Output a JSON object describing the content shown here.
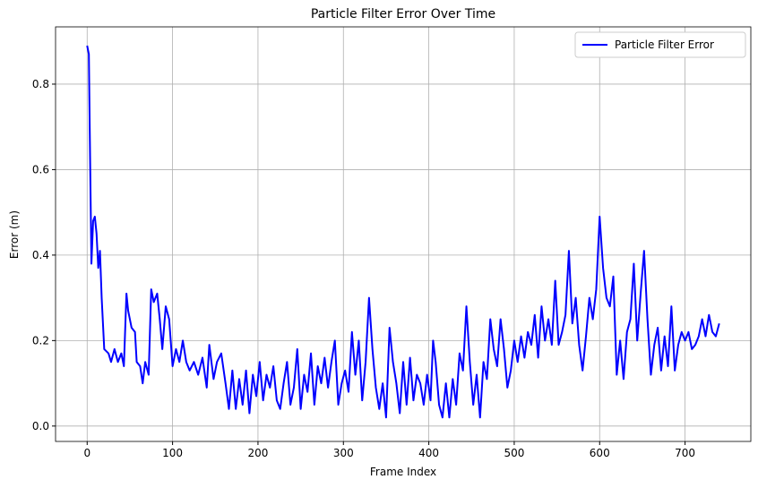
{
  "chart_data": {
    "type": "line",
    "title": "Particle Filter Error Over Time",
    "x_label": "Frame Index",
    "y_label": "Error (m)",
    "x": [
      0,
      2,
      3,
      5,
      7,
      9,
      11,
      13,
      15,
      17,
      20,
      25,
      28,
      32,
      36,
      40,
      43,
      46,
      48,
      52,
      56,
      58,
      62,
      65,
      68,
      72,
      75,
      78,
      82,
      85,
      88,
      92,
      96,
      100,
      104,
      108,
      112,
      116,
      120,
      125,
      130,
      135,
      140,
      143,
      148,
      152,
      157,
      162,
      166,
      170,
      174,
      178,
      182,
      186,
      190,
      194,
      198,
      202,
      206,
      210,
      214,
      218,
      222,
      226,
      230,
      234,
      238,
      242,
      246,
      250,
      254,
      258,
      262,
      266,
      270,
      274,
      278,
      282,
      286,
      290,
      294,
      298,
      302,
      306,
      310,
      314,
      318,
      322,
      326,
      330,
      334,
      338,
      342,
      346,
      350,
      354,
      358,
      362,
      366,
      370,
      374,
      378,
      382,
      386,
      390,
      394,
      398,
      402,
      405,
      408,
      412,
      416,
      420,
      424,
      428,
      432,
      436,
      440,
      444,
      448,
      452,
      456,
      460,
      464,
      468,
      472,
      476,
      480,
      484,
      488,
      492,
      496,
      500,
      504,
      508,
      512,
      516,
      520,
      524,
      528,
      532,
      536,
      540,
      544,
      548,
      552,
      556,
      560,
      564,
      568,
      572,
      576,
      580,
      584,
      588,
      592,
      596,
      600,
      604,
      608,
      612,
      616,
      620,
      624,
      628,
      632,
      636,
      640,
      644,
      648,
      652,
      656,
      660,
      664,
      668,
      672,
      676,
      680,
      684,
      688,
      692,
      696,
      700,
      704,
      708,
      712,
      716,
      720,
      724,
      728,
      732,
      736,
      740
    ],
    "series": [
      {
        "name": "Particle Filter Error",
        "color": "#0000ff",
        "values": [
          0.89,
          0.87,
          0.7,
          0.38,
          0.48,
          0.49,
          0.45,
          0.37,
          0.41,
          0.3,
          0.18,
          0.17,
          0.15,
          0.18,
          0.15,
          0.17,
          0.14,
          0.31,
          0.27,
          0.23,
          0.22,
          0.15,
          0.14,
          0.1,
          0.15,
          0.12,
          0.32,
          0.29,
          0.31,
          0.25,
          0.18,
          0.28,
          0.25,
          0.14,
          0.18,
          0.15,
          0.2,
          0.15,
          0.13,
          0.15,
          0.12,
          0.16,
          0.09,
          0.19,
          0.11,
          0.15,
          0.17,
          0.1,
          0.04,
          0.13,
          0.04,
          0.11,
          0.05,
          0.13,
          0.03,
          0.12,
          0.07,
          0.15,
          0.06,
          0.12,
          0.09,
          0.14,
          0.06,
          0.04,
          0.1,
          0.15,
          0.05,
          0.09,
          0.18,
          0.04,
          0.12,
          0.08,
          0.17,
          0.05,
          0.14,
          0.1,
          0.16,
          0.09,
          0.15,
          0.2,
          0.05,
          0.1,
          0.13,
          0.08,
          0.22,
          0.12,
          0.2,
          0.06,
          0.15,
          0.3,
          0.18,
          0.09,
          0.04,
          0.1,
          0.02,
          0.23,
          0.15,
          0.1,
          0.03,
          0.15,
          0.05,
          0.16,
          0.06,
          0.12,
          0.1,
          0.05,
          0.12,
          0.06,
          0.2,
          0.15,
          0.05,
          0.02,
          0.1,
          0.02,
          0.11,
          0.05,
          0.17,
          0.13,
          0.28,
          0.15,
          0.05,
          0.12,
          0.02,
          0.15,
          0.11,
          0.25,
          0.18,
          0.14,
          0.25,
          0.18,
          0.09,
          0.13,
          0.2,
          0.15,
          0.21,
          0.16,
          0.22,
          0.19,
          0.26,
          0.16,
          0.28,
          0.2,
          0.25,
          0.19,
          0.34,
          0.19,
          0.22,
          0.26,
          0.41,
          0.24,
          0.3,
          0.19,
          0.13,
          0.21,
          0.3,
          0.25,
          0.32,
          0.49,
          0.37,
          0.3,
          0.28,
          0.35,
          0.12,
          0.2,
          0.11,
          0.22,
          0.25,
          0.38,
          0.2,
          0.31,
          0.41,
          0.25,
          0.12,
          0.19,
          0.23,
          0.13,
          0.21,
          0.14,
          0.28,
          0.13,
          0.19,
          0.22,
          0.2,
          0.22,
          0.18,
          0.19,
          0.21,
          0.25,
          0.21,
          0.26,
          0.22,
          0.21,
          0.24
        ]
      }
    ],
    "xlim": [
      -37,
      777
    ],
    "ylim": [
      -0.036,
      0.934
    ],
    "xticks": [
      0,
      100,
      200,
      300,
      400,
      500,
      600,
      700
    ],
    "yticks": [
      {
        "value": 0,
        "label": "0.0"
      },
      0.2,
      0.4,
      0.6,
      0.8
    ],
    "grid": true,
    "legend": "upper right"
  }
}
